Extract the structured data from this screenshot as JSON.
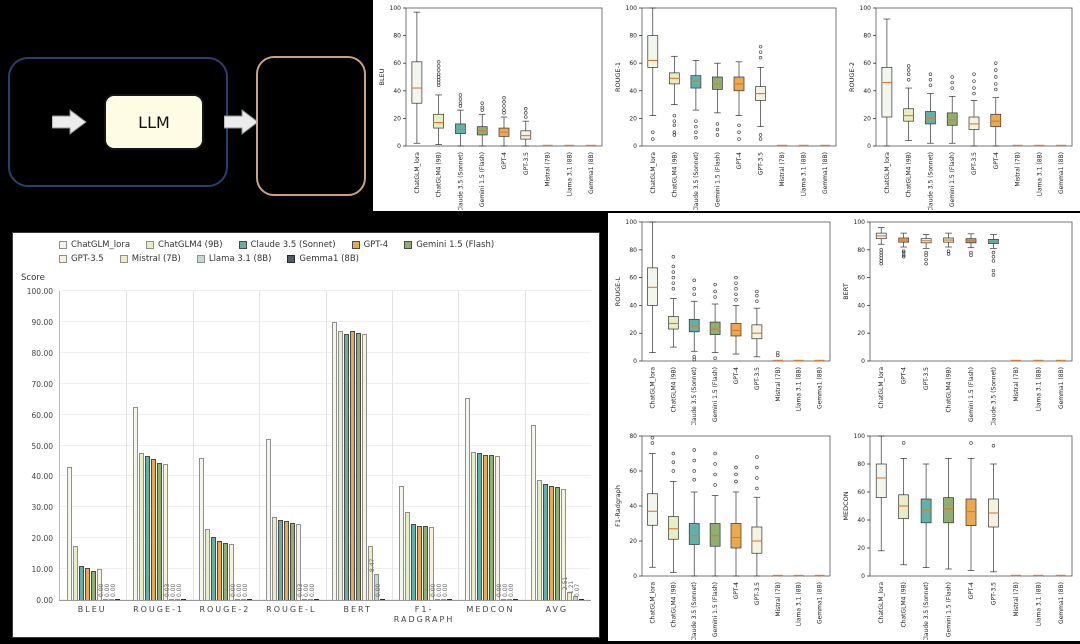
{
  "diagram": {
    "llm_label": "LLM"
  },
  "models": [
    {
      "name": "ChatGLM_lora",
      "color": "#f2f6ec",
      "border": "#8f8f8f"
    },
    {
      "name": "ChatGLM4 (9B)",
      "color": "#e9edc4",
      "border": "#8f8f8f"
    },
    {
      "name": "Claude 3.5 (Sonnet)",
      "color": "#61b1a9",
      "border": "#4a4a4a"
    },
    {
      "name": "GPT-4",
      "color": "#eca84f",
      "border": "#4a4a4a"
    },
    {
      "name": "Gemini 1.5 (Flash)",
      "color": "#8fae6f",
      "border": "#4a4a4a"
    },
    {
      "name": "GPT-3.5",
      "color": "#f7f2df",
      "border": "#8f8f8f"
    },
    {
      "name": "Mistral (7B)",
      "color": "#f4ecbf",
      "border": "#8f8f8f"
    },
    {
      "name": "Llama 3.1 (8B)",
      "color": "#bedbd2",
      "border": "#8f8f8f"
    },
    {
      "name": "Gemma1 (8B)",
      "color": "#525c6b",
      "border": "#2a2a2a"
    }
  ],
  "accent": {
    "median_color": "#d97a34"
  },
  "chart_data": [
    {
      "type": "bar",
      "title": "",
      "ylabel": "Score",
      "ylim": [
        0,
        100
      ],
      "yticks": [
        0,
        10,
        20,
        30,
        40,
        50,
        60,
        70,
        80,
        90,
        100
      ],
      "categories": [
        "BLEU",
        "ROUGE-1",
        "ROUGE-2",
        "ROUGE-L",
        "BERT",
        "F1-\nRADGRAPH",
        "MEDCON",
        "AVG"
      ],
      "series": [
        {
          "name": "ChatGLM_lora",
          "values": [
            43.0,
            62.5,
            46.0,
            52.0,
            90.0,
            37.0,
            65.5,
            56.5
          ]
        },
        {
          "name": "ChatGLM4 (9B)",
          "values": [
            17.5,
            47.5,
            23.0,
            27.0,
            87.0,
            28.5,
            48.0,
            39.0
          ]
        },
        {
          "name": "Claude 3.5 (Sonnet)",
          "values": [
            11.0,
            46.5,
            20.5,
            26.0,
            86.0,
            24.5,
            47.5,
            37.5
          ]
        },
        {
          "name": "GPT-4",
          "values": [
            10.5,
            45.5,
            19.0,
            25.5,
            87.0,
            24.0,
            47.0,
            37.0
          ]
        },
        {
          "name": "Gemini 1.5 (Flash)",
          "values": [
            9.5,
            44.5,
            18.5,
            25.0,
            86.5,
            24.0,
            47.0,
            36.5
          ]
        },
        {
          "name": "GPT-3.5",
          "values": [
            10.0,
            44.0,
            18.0,
            24.5,
            86.0,
            23.5,
            46.5,
            36.0
          ]
        },
        {
          "name": "Mistral (7B)",
          "values": [
            0.0,
            0.03,
            0.0,
            0.03,
            17.5,
            0.0,
            0.0,
            2.51
          ]
        },
        {
          "name": "Llama 3.1 (8B)",
          "values": [
            0.0,
            0.0,
            0.0,
            0.0,
            8.47,
            0.0,
            0.0,
            1.21
          ]
        },
        {
          "name": "Gemma1 (8B)",
          "values": [
            0.0,
            0.0,
            0.0,
            0.0,
            0.0,
            0.0,
            0.0,
            0.07
          ]
        }
      ]
    },
    {
      "type": "box",
      "ylabel": "BLEU",
      "ylim": [
        0,
        100
      ],
      "yticks": [
        0,
        20,
        40,
        60,
        80,
        100
      ],
      "items": [
        {
          "label": "ChatGLM_lora",
          "whislo": 2,
          "q1": 31,
          "med": 42,
          "q3": 61,
          "whishi": 97,
          "outliers": []
        },
        {
          "label": "ChatGLM4 (9B)",
          "whislo": 1,
          "q1": 13,
          "med": 17,
          "q3": 23,
          "whishi": 37,
          "outliers": [
            44,
            46,
            48,
            50,
            52,
            55,
            58,
            61
          ]
        },
        {
          "label": "Claude 3.5 (Sonnet)",
          "whislo": 0,
          "q1": 9,
          "med": 12,
          "q3": 16,
          "whishi": 26,
          "outliers": [
            29,
            31,
            34,
            37
          ]
        },
        {
          "label": "Gemini 1.5 (Flash)",
          "whislo": 0,
          "q1": 8,
          "med": 11,
          "q3": 14,
          "whishi": 23,
          "outliers": [
            26,
            28,
            31
          ]
        },
        {
          "label": "GPT-4",
          "whislo": 0,
          "q1": 7,
          "med": 10,
          "q3": 13,
          "whishi": 21,
          "outliers": [
            24,
            26,
            29,
            32,
            35
          ]
        },
        {
          "label": "GPT-3.5",
          "whislo": 0,
          "q1": 5,
          "med": 7.5,
          "q3": 11,
          "whishi": 18,
          "outliers": [
            21,
            24,
            27
          ]
        },
        {
          "label": "Mistral (7B)",
          "flat": true,
          "med": 0.4,
          "outliers": []
        },
        {
          "label": "Llama 3.1 (8B)",
          "flat": true,
          "med": 0.4,
          "outliers": []
        },
        {
          "label": "Gemma1 (8B)",
          "flat": true,
          "med": 0.4,
          "outliers": []
        }
      ]
    },
    {
      "type": "box",
      "ylabel": "ROUGE-1",
      "ylim": [
        0,
        100
      ],
      "yticks": [
        0,
        20,
        40,
        60,
        80,
        100
      ],
      "items": [
        {
          "label": "ChatGLM_lora",
          "whislo": 22,
          "q1": 57,
          "med": 62,
          "q3": 80,
          "whishi": 100,
          "outliers": [
            10,
            5
          ]
        },
        {
          "label": "ChatGLM4 (9B)",
          "whislo": 30,
          "q1": 45,
          "med": 49,
          "q3": 53,
          "whishi": 65,
          "outliers": [
            22,
            18,
            15,
            10,
            8
          ]
        },
        {
          "label": "Claude 3.5 (Sonnet)",
          "whislo": 26,
          "q1": 42,
          "med": 47,
          "q3": 51,
          "whishi": 62,
          "outliers": [
            18,
            14,
            10,
            6
          ]
        },
        {
          "label": "Gemini 1.5 (Flash)",
          "whislo": 24,
          "q1": 41,
          "med": 45,
          "q3": 50,
          "whishi": 60,
          "outliers": [
            16,
            12,
            8
          ]
        },
        {
          "label": "GPT-4",
          "whislo": 22,
          "q1": 40,
          "med": 45,
          "q3": 50,
          "whishi": 61,
          "outliers": [
            15,
            10,
            5
          ]
        },
        {
          "label": "GPT-3.5",
          "whislo": 14,
          "q1": 33,
          "med": 38,
          "q3": 43,
          "whishi": 57,
          "outliers": [
            64,
            68,
            72,
            8,
            5
          ]
        },
        {
          "label": "Mistral (7B)",
          "flat": true,
          "med": 0.4,
          "outliers": []
        },
        {
          "label": "Llama 3.1 (8B)",
          "flat": true,
          "med": 0.4,
          "outliers": []
        },
        {
          "label": "Gemma1 (8B)",
          "flat": true,
          "med": 0.4,
          "outliers": []
        }
      ]
    },
    {
      "type": "box",
      "ylabel": "ROUGE-2",
      "ylim": [
        0,
        100
      ],
      "yticks": [
        0,
        20,
        40,
        60,
        80,
        100
      ],
      "items": [
        {
          "label": "ChatGLM_lora",
          "whislo": 0,
          "q1": 21,
          "med": 46,
          "q3": 57,
          "whishi": 92,
          "outliers": []
        },
        {
          "label": "ChatGLM4 (9B)",
          "whislo": 4,
          "q1": 18,
          "med": 22,
          "q3": 27,
          "whishi": 42,
          "outliers": [
            48,
            52,
            55,
            58
          ]
        },
        {
          "label": "Claude 3.5 (Sonnet)",
          "whislo": 2,
          "q1": 16,
          "med": 20,
          "q3": 25,
          "whishi": 38,
          "outliers": [
            44,
            48,
            52
          ]
        },
        {
          "label": "Gemini 1.5 (Flash)",
          "whislo": 2,
          "q1": 15,
          "med": 19,
          "q3": 24,
          "whishi": 36,
          "outliers": [
            42,
            46,
            50
          ]
        },
        {
          "label": "GPT-3.5",
          "whislo": 0,
          "q1": 12,
          "med": 16,
          "q3": 21,
          "whishi": 33,
          "outliers": [
            38,
            42,
            47,
            52
          ]
        },
        {
          "label": "GPT-4",
          "whislo": 0,
          "q1": 14,
          "med": 18,
          "q3": 23,
          "whishi": 35,
          "outliers": [
            41,
            45,
            50,
            55,
            60
          ]
        },
        {
          "label": "Mistral (7B)",
          "flat": true,
          "med": 0.4,
          "outliers": []
        },
        {
          "label": "Llama 3.1 (8B)",
          "flat": true,
          "med": 0.4,
          "outliers": []
        },
        {
          "label": "Gemma1 (8B)",
          "flat": true,
          "med": 0.4,
          "outliers": []
        }
      ]
    },
    {
      "type": "box",
      "ylabel": "ROUGE-L",
      "ylim": [
        0,
        100
      ],
      "yticks": [
        0,
        20,
        40,
        60,
        80,
        100
      ],
      "items": [
        {
          "label": "ChatGLM_lora",
          "whislo": 6,
          "q1": 40,
          "med": 53,
          "q3": 67,
          "whishi": 100,
          "outliers": []
        },
        {
          "label": "ChatGLM4 (9B)",
          "whislo": 10,
          "q1": 23,
          "med": 27,
          "q3": 32,
          "whishi": 45,
          "outliers": [
            52,
            56,
            60,
            64,
            68,
            75
          ]
        },
        {
          "label": "Claude 3.5 (Sonnet)",
          "whislo": 7,
          "q1": 21,
          "med": 25,
          "q3": 30,
          "whishi": 43,
          "outliers": [
            48,
            52,
            58,
            3,
            1
          ]
        },
        {
          "label": "Gemini 1.5 (Flash)",
          "whislo": 6,
          "q1": 19,
          "med": 23,
          "q3": 28,
          "whishi": 41,
          "outliers": [
            46,
            50,
            55,
            2
          ]
        },
        {
          "label": "GPT-4",
          "whislo": 5,
          "q1": 18,
          "med": 22,
          "q3": 27,
          "whishi": 40,
          "outliers": [
            44,
            48,
            52,
            56,
            60
          ]
        },
        {
          "label": "GPT-3.5",
          "whislo": 3,
          "q1": 16,
          "med": 20,
          "q3": 26,
          "whishi": 38,
          "outliers": [
            43,
            47,
            50
          ]
        },
        {
          "label": "Mistral (7B)",
          "flat": true,
          "med": 0.4,
          "outliers": [
            4,
            6
          ]
        },
        {
          "label": "Llama 3.1 (8B)",
          "flat": true,
          "med": 0.4,
          "outliers": []
        },
        {
          "label": "Gemma1 (8B)",
          "flat": true,
          "med": 0.4,
          "outliers": []
        }
      ]
    },
    {
      "type": "box",
      "ylabel": "BERT",
      "ylim": [
        0,
        100
      ],
      "yticks": [
        0,
        20,
        40,
        60,
        80,
        100
      ],
      "items": [
        {
          "label": "ChatGLM_lora",
          "whislo": 84,
          "q1": 88,
          "med": 90,
          "q3": 92,
          "whishi": 96,
          "outliers": [
            80,
            78,
            76,
            74,
            72,
            70
          ]
        },
        {
          "label": "GPT-4",
          "whislo": 82,
          "q1": 85.5,
          "med": 87,
          "q3": 88.5,
          "whishi": 92,
          "outliers": [
            79,
            78,
            76,
            75
          ]
        },
        {
          "label": "GPT-3.5",
          "whislo": 81,
          "q1": 85,
          "med": 86.5,
          "q3": 88,
          "whishi": 91,
          "outliers": [
            78,
            76,
            73,
            70
          ]
        },
        {
          "label": "ChatGLM4 (9B)",
          "whislo": 82,
          "q1": 85.5,
          "med": 87,
          "q3": 88.5,
          "whishi": 92,
          "outliers": [
            79,
            77
          ]
        },
        {
          "label": "Gemini 1.5 (Flash)",
          "whislo": 81.5,
          "q1": 85,
          "med": 86.5,
          "q3": 88,
          "whishi": 91.5,
          "outliers": [
            78,
            76
          ]
        },
        {
          "label": "Claude 3.5 (Sonnet)",
          "whislo": 81,
          "q1": 84.5,
          "med": 86,
          "q3": 87.5,
          "whishi": 91,
          "outliers": [
            78,
            75,
            72,
            65,
            62
          ]
        },
        {
          "label": "Mistral (7B)",
          "flat": true,
          "med": 0.4,
          "outliers": []
        },
        {
          "label": "Llama 3.1 (8B)",
          "flat": true,
          "med": 0.4,
          "outliers": []
        },
        {
          "label": "Gemma1 (8B)",
          "flat": true,
          "med": 0.4,
          "outliers": []
        }
      ]
    },
    {
      "type": "box",
      "ylabel": "F1-Radgraph",
      "ylim": [
        0,
        80
      ],
      "yticks": [
        0,
        20,
        40,
        60,
        80
      ],
      "items": [
        {
          "label": "ChatGLM_lora",
          "whislo": 5,
          "q1": 29,
          "med": 37,
          "q3": 47,
          "whishi": 70,
          "outliers": [
            76,
            79
          ]
        },
        {
          "label": "ChatGLM4 (9B)",
          "whislo": 2,
          "q1": 21,
          "med": 27,
          "q3": 34,
          "whishi": 54,
          "outliers": [
            60,
            65,
            70
          ]
        },
        {
          "label": "Claude 3.5 (Sonnet)",
          "whislo": 0,
          "q1": 18,
          "med": 23,
          "q3": 30,
          "whishi": 48,
          "outliers": [
            55,
            60,
            66,
            72
          ]
        },
        {
          "label": "Gemini 1.5 (Flash)",
          "whislo": 0,
          "q1": 17,
          "med": 23,
          "q3": 30,
          "whishi": 46,
          "outliers": [
            52,
            58,
            64,
            70
          ]
        },
        {
          "label": "GPT-4",
          "whislo": 0,
          "q1": 16,
          "med": 22,
          "q3": 30,
          "whishi": 48,
          "outliers": [
            54,
            58,
            62
          ]
        },
        {
          "label": "GPT-3.5",
          "whislo": 0,
          "q1": 13,
          "med": 20,
          "q3": 28,
          "whishi": 45,
          "outliers": [
            50,
            56,
            62,
            68
          ]
        },
        {
          "label": "Mistral (7B)",
          "flat": true,
          "med": 0.3,
          "outliers": []
        },
        {
          "label": "Llama 3.1 (8B)",
          "flat": true,
          "med": 0.3,
          "outliers": []
        },
        {
          "label": "Gemma1 (8B)",
          "flat": true,
          "med": 0.3,
          "outliers": []
        }
      ]
    },
    {
      "type": "box",
      "ylabel": "MEDCON",
      "ylim": [
        0,
        100
      ],
      "yticks": [
        0,
        20,
        40,
        60,
        80,
        100
      ],
      "items": [
        {
          "label": "ChatGLM_lora",
          "whislo": 18,
          "q1": 56,
          "med": 70,
          "q3": 80,
          "whishi": 100,
          "outliers": []
        },
        {
          "label": "ChatGLM4 (9B)",
          "whislo": 8,
          "q1": 41,
          "med": 50,
          "q3": 58,
          "whishi": 84,
          "outliers": [
            95
          ]
        },
        {
          "label": "Claude 3.5 (Sonnet)",
          "whislo": 6,
          "q1": 38,
          "med": 47,
          "q3": 55,
          "whishi": 80,
          "outliers": []
        },
        {
          "label": "Gemini 1.5 (Flash)",
          "whislo": 5,
          "q1": 38,
          "med": 48,
          "q3": 56,
          "whishi": 84,
          "outliers": []
        },
        {
          "label": "GPT-4",
          "whislo": 4,
          "q1": 36,
          "med": 46,
          "q3": 55,
          "whishi": 84,
          "outliers": [
            95
          ]
        },
        {
          "label": "GPT-3.5",
          "whislo": 3,
          "q1": 35,
          "med": 45,
          "q3": 55,
          "whishi": 80,
          "outliers": [
            93
          ]
        },
        {
          "label": "Mistral (7B)",
          "flat": true,
          "med": 0.4,
          "outliers": []
        },
        {
          "label": "Llama 3.1 (8B)",
          "flat": true,
          "med": 0.4,
          "outliers": []
        },
        {
          "label": "Gemma1 (8B)",
          "flat": true,
          "med": 0.4,
          "outliers": []
        }
      ]
    }
  ]
}
